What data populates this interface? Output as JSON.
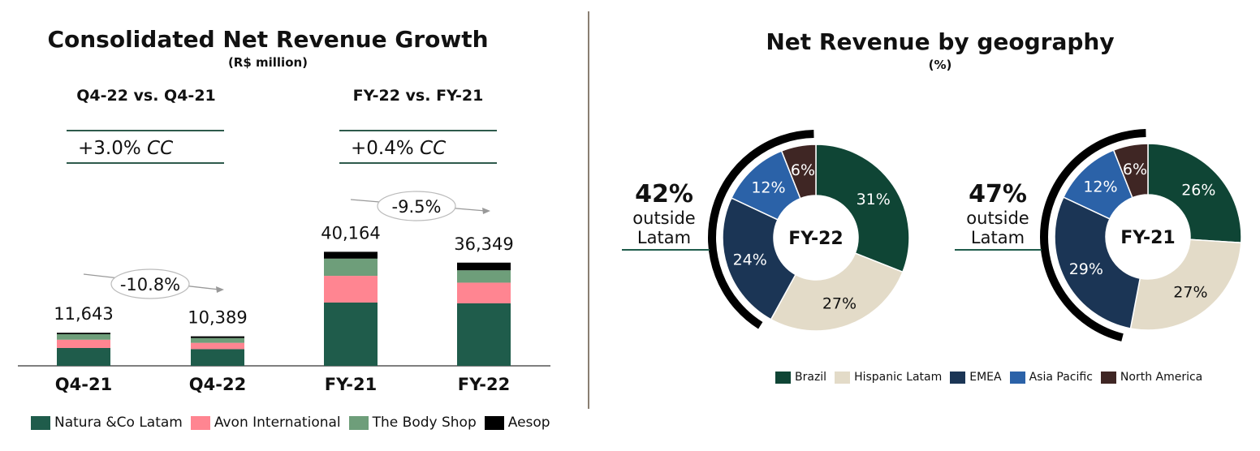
{
  "left": {
    "title": "Consolidated Net Revenue Growth",
    "subtitle": "(R$ million)",
    "comparisons": [
      {
        "label": "Q4-22 vs. Q4-21",
        "growth": "+3.0%",
        "unit": "CC"
      },
      {
        "label": "FY-22 vs. FY-21",
        "growth": "+0.4%",
        "unit": "CC"
      }
    ],
    "change_labels": [
      "-10.8%",
      "-9.5%"
    ]
  },
  "right": {
    "title": "Net Revenue by geography",
    "subtitle": "(%)",
    "outside_text": [
      "outside",
      "Latam"
    ]
  },
  "colors": {
    "natura": "#1f5c4b",
    "avon": "#ff8591",
    "tbs": "#6e9e7a",
    "aesop": "#000000",
    "brazil": "#0f4535",
    "hispanic": "#e3dbc8",
    "emea": "#1b3555",
    "apac": "#2b62a8",
    "na": "#3f2624"
  },
  "chart_data": [
    {
      "type": "bar",
      "stacked": true,
      "categories": [
        "Q4-21",
        "Q4-22",
        "FY-21",
        "FY-22"
      ],
      "totals": [
        11643,
        10389,
        40164,
        36349
      ],
      "total_labels": [
        "11,643",
        "10,389",
        "40,164",
        "36,349"
      ],
      "series": [
        {
          "name": "Natura &Co Latam",
          "values": [
            6300,
            5900,
            22300,
            22000
          ]
        },
        {
          "name": "Avon International",
          "values": [
            2900,
            2200,
            9400,
            7300
          ]
        },
        {
          "name": "The Body Shop",
          "values": [
            1943,
            1689,
            6064,
            4349
          ]
        },
        {
          "name": "Aesop",
          "values": [
            500,
            600,
            2400,
            2700
          ]
        }
      ]
    },
    {
      "type": "pie",
      "center_label": "FY-22",
      "outside_latam": "42%",
      "labels": [
        "Brazil",
        "Hispanic Latam",
        "EMEA",
        "Asia Pacific",
        "North America"
      ],
      "values": [
        31,
        27,
        24,
        12,
        6
      ],
      "value_labels": [
        "31%",
        "27%",
        "24%",
        "12%",
        "6%"
      ]
    },
    {
      "type": "pie",
      "center_label": "FY-21",
      "outside_latam": "47%",
      "labels": [
        "Brazil",
        "Hispanic Latam",
        "EMEA",
        "Asia Pacific",
        "North America"
      ],
      "values": [
        26,
        27,
        29,
        12,
        6
      ],
      "value_labels": [
        "26%",
        "27%",
        "29%",
        "12%",
        "6%"
      ]
    }
  ]
}
